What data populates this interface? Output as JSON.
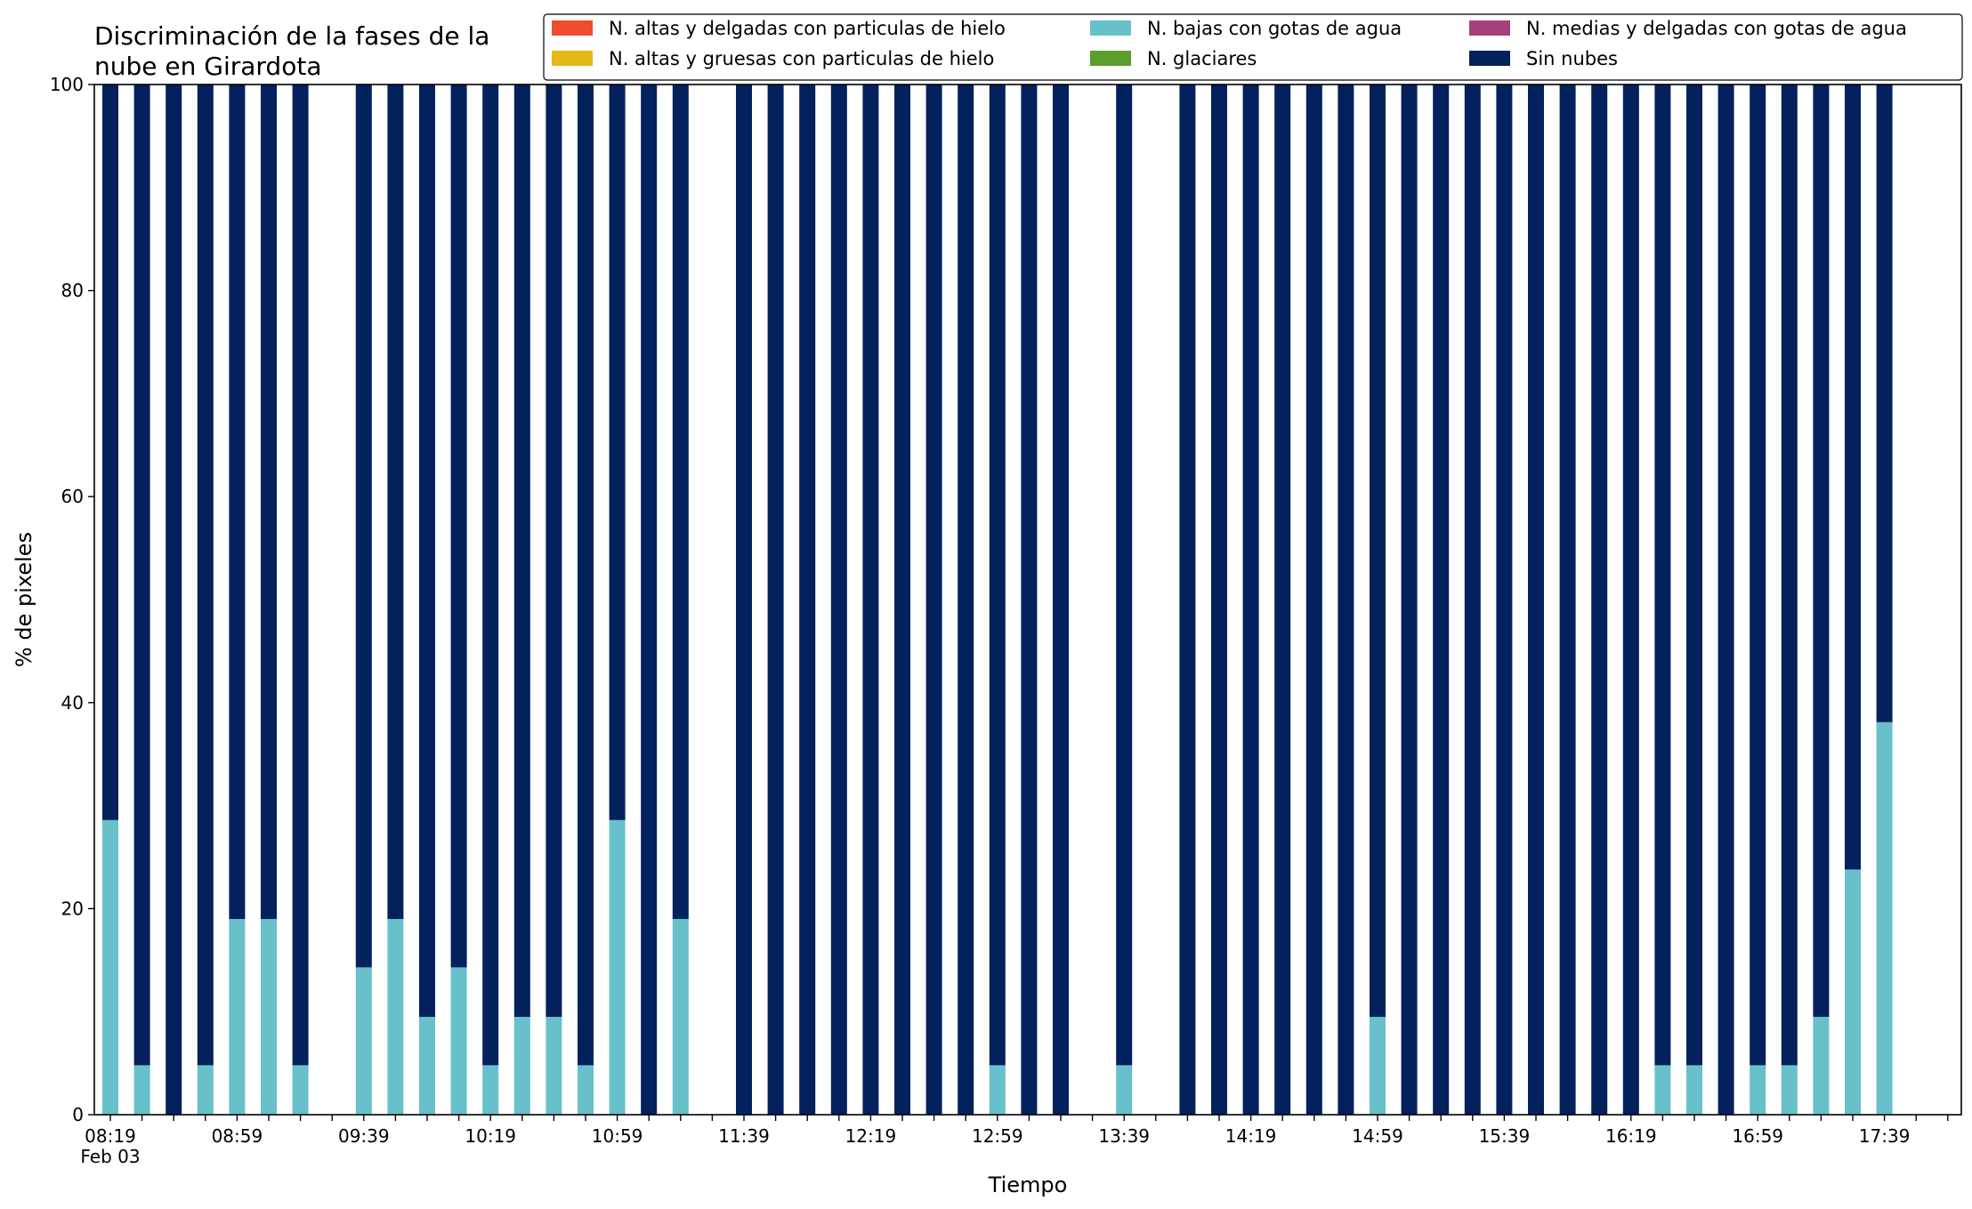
{
  "chart_data": {
    "type": "bar",
    "stacked": true,
    "title": "Discriminación de la fases de la nube en Girardota",
    "title_lines": [
      "Discriminación de la fases de la",
      "nube en Girardota"
    ],
    "xlabel": "Tiempo",
    "ylabel": "% de pixeles",
    "ylim": [
      0,
      100
    ],
    "yticks": [
      "0",
      "20",
      "40",
      "60",
      "80",
      "100"
    ],
    "date_label": "Feb 03",
    "x_tick_labels": [
      "08:19",
      "08:59",
      "09:39",
      "10:19",
      "10:59",
      "11:39",
      "12:19",
      "12:59",
      "13:39",
      "14:19",
      "14:59",
      "15:39",
      "16:19",
      "16:59",
      "17:39"
    ],
    "x_start": "08:19",
    "x_end": "18:09",
    "interval_minutes": 10,
    "legend_placement": "top-right",
    "grid": false,
    "categories": [
      "08:19",
      "08:29",
      "08:39",
      "08:49",
      "08:59",
      "09:09",
      "09:19",
      "09:29",
      "09:39",
      "09:49",
      "09:59",
      "10:09",
      "10:19",
      "10:29",
      "10:39",
      "10:49",
      "10:59",
      "11:09",
      "11:19",
      "11:29",
      "11:39",
      "11:49",
      "11:59",
      "12:09",
      "12:19",
      "12:29",
      "12:39",
      "12:49",
      "12:59",
      "13:09",
      "13:19",
      "13:29",
      "13:39",
      "13:49",
      "13:59",
      "14:09",
      "14:19",
      "14:29",
      "14:39",
      "14:49",
      "14:59",
      "15:09",
      "15:19",
      "15:29",
      "15:39",
      "15:49",
      "15:59",
      "16:09",
      "16:19",
      "16:29",
      "16:39",
      "16:49",
      "16:59",
      "17:09",
      "17:19",
      "17:29",
      "17:39"
    ],
    "series": [
      {
        "name": "N. altas y delgadas con particulas de hielo",
        "color": "#f04c2e",
        "values": [
          0,
          0,
          0,
          0,
          0,
          0,
          0,
          null,
          0,
          0,
          0,
          0,
          0,
          0,
          0,
          0,
          0,
          0,
          0,
          null,
          0,
          0,
          0,
          0,
          0,
          0,
          0,
          0,
          0,
          0,
          0,
          null,
          0,
          null,
          0,
          0,
          0,
          0,
          0,
          0,
          0,
          0,
          0,
          0,
          0,
          0,
          0,
          0,
          0,
          0,
          0,
          0,
          0,
          0,
          0,
          0,
          0
        ]
      },
      {
        "name": "N. altas y gruesas con particulas de hielo",
        "color": "#e5b818",
        "values": [
          0,
          0,
          0,
          0,
          0,
          0,
          0,
          null,
          0,
          0,
          0,
          0,
          0,
          0,
          0,
          0,
          0,
          0,
          0,
          null,
          0,
          0,
          0,
          0,
          0,
          0,
          0,
          0,
          0,
          0,
          0,
          null,
          0,
          null,
          0,
          0,
          0,
          0,
          0,
          0,
          0,
          0,
          0,
          0,
          0,
          0,
          0,
          0,
          0,
          0,
          0,
          0,
          0,
          0,
          0,
          0,
          0
        ]
      },
      {
        "name": "N. bajas con gotas de agua",
        "color": "#68c0cb",
        "values": [
          28.6,
          4.8,
          0,
          4.8,
          19,
          19,
          4.8,
          null,
          14.3,
          19,
          9.5,
          14.3,
          4.8,
          9.5,
          9.5,
          4.8,
          28.6,
          0,
          19,
          null,
          0,
          0,
          0,
          0,
          0,
          0,
          0,
          0,
          4.8,
          0,
          0,
          null,
          4.8,
          null,
          0,
          0,
          0,
          0,
          0,
          0,
          9.5,
          0,
          0,
          0,
          0,
          0,
          0,
          0,
          0,
          4.8,
          4.8,
          0,
          4.8,
          4.8,
          9.5,
          23.8,
          38.1
        ]
      },
      {
        "name": "N. glaciares",
        "color": "#5a9e2c",
        "values": [
          0,
          0,
          0,
          0,
          0,
          0,
          0,
          null,
          0,
          0,
          0,
          0,
          0,
          0,
          0,
          0,
          0,
          0,
          0,
          null,
          0,
          0,
          0,
          0,
          0,
          0,
          0,
          0,
          0,
          0,
          0,
          null,
          0,
          null,
          0,
          0,
          0,
          0,
          0,
          0,
          0,
          0,
          0,
          0,
          0,
          0,
          0,
          0,
          0,
          0,
          0,
          0,
          0,
          0,
          0,
          0,
          0
        ]
      },
      {
        "name": "N. medias y delgadas con gotas de agua",
        "color": "#a4407a",
        "values": [
          0,
          0,
          0,
          0,
          0,
          0,
          0,
          null,
          0,
          0,
          0,
          0,
          0,
          0,
          0,
          0,
          0,
          0,
          0,
          null,
          0,
          0,
          0,
          0,
          0,
          0,
          0,
          0,
          0,
          0,
          0,
          null,
          0,
          null,
          0,
          0,
          0,
          0,
          0,
          0,
          0,
          0,
          0,
          0,
          0,
          0,
          0,
          0,
          0,
          0,
          0,
          0,
          0,
          0,
          0,
          0,
          0
        ]
      },
      {
        "name": "Sin nubes",
        "color": "#03215d",
        "values": [
          71.4,
          95.2,
          100,
          95.2,
          81,
          81,
          95.2,
          null,
          85.7,
          81,
          90.5,
          85.7,
          95.2,
          90.5,
          90.5,
          95.2,
          71.4,
          100,
          81,
          null,
          100,
          100,
          100,
          100,
          100,
          100,
          100,
          100,
          95.2,
          100,
          100,
          null,
          95.2,
          null,
          100,
          100,
          100,
          100,
          100,
          100,
          90.5,
          100,
          100,
          100,
          100,
          100,
          100,
          100,
          100,
          95.2,
          95.2,
          100,
          95.2,
          95.2,
          90.5,
          76.2,
          61.9
        ]
      }
    ]
  }
}
